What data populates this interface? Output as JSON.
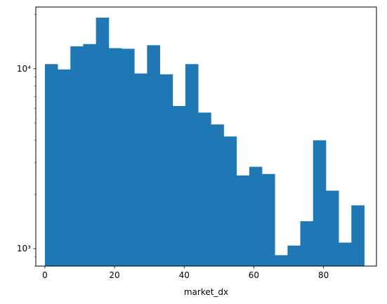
{
  "chart_data": {
    "type": "bar",
    "subtype": "histogram",
    "title": "",
    "xlabel": "market_dx",
    "ylabel": "",
    "xlim": [
      -2.6,
      95.2
    ],
    "ylim": [
      800,
      22000
    ],
    "yscale": "log",
    "grid": false,
    "color": "#1f77b4",
    "bin_edges": [
      0,
      3.67,
      7.33,
      11,
      14.67,
      18.33,
      22,
      25.67,
      29.33,
      33,
      36.67,
      40.33,
      44,
      47.67,
      51.33,
      55,
      58.67,
      62.33,
      66,
      69.67,
      73.33,
      77,
      80.67,
      84.33,
      88,
      91.67
    ],
    "values": [
      10600,
      9900,
      13300,
      13700,
      19200,
      13000,
      12900,
      9400,
      13500,
      9300,
      6200,
      10600,
      5700,
      4900,
      4200,
      2550,
      2850,
      2600,
      920,
      1040,
      1420,
      4000,
      2100,
      1080,
      1740
    ],
    "x_ticks": [
      0,
      20,
      40,
      60,
      80
    ],
    "x_tick_labels": [
      "0",
      "20",
      "40",
      "60",
      "80"
    ],
    "y_major_ticks": [
      1000,
      10000
    ],
    "y_tick_labels": [
      "10³",
      "10⁴"
    ]
  }
}
